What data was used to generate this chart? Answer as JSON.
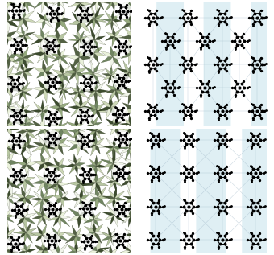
{
  "background": "#ffffff",
  "poly_colors": [
    "#c8d4b0",
    "#b0c098",
    "#8aa070",
    "#607850",
    "#405030",
    "#d8e4c0",
    "#e8f0d8",
    "#f0f4e8"
  ],
  "poly_dark": [
    "#384828",
    "#283818",
    "#506040"
  ],
  "mol_bg": "#ffffff",
  "pore_blue": "#b8dce8",
  "line_color": "#a0b8c8",
  "line_dark": "#708090",
  "mol_color": "#101010"
}
